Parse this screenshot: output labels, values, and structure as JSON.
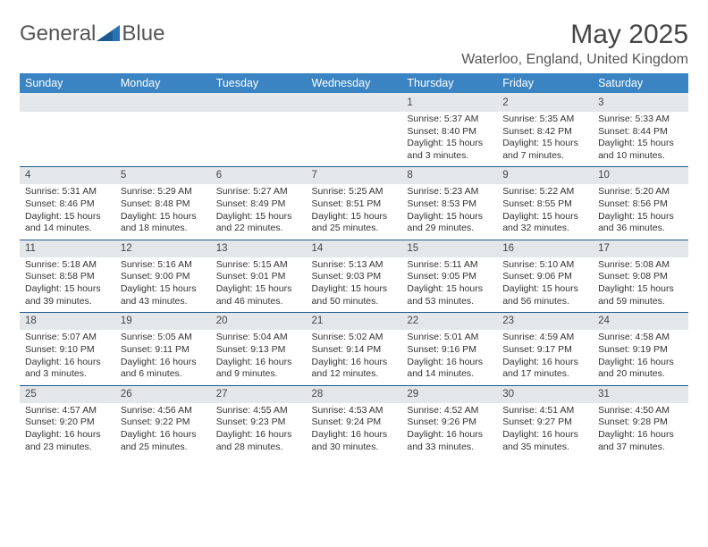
{
  "logo": {
    "text_a": "General",
    "text_b": "Blue"
  },
  "title": "May 2025",
  "location": "Waterloo, England, United Kingdom",
  "colors": {
    "header_bg": "#3b84c4",
    "row_rule": "#1b5a8f",
    "daynum_bg": "#e4e7ea",
    "text": "#333333"
  },
  "weekdays": [
    "Sunday",
    "Monday",
    "Tuesday",
    "Wednesday",
    "Thursday",
    "Friday",
    "Saturday"
  ],
  "weeks": [
    [
      null,
      null,
      null,
      null,
      {
        "d": "1",
        "sr": "5:37 AM",
        "ss": "8:40 PM",
        "dl": "15 hours and 3 minutes."
      },
      {
        "d": "2",
        "sr": "5:35 AM",
        "ss": "8:42 PM",
        "dl": "15 hours and 7 minutes."
      },
      {
        "d": "3",
        "sr": "5:33 AM",
        "ss": "8:44 PM",
        "dl": "15 hours and 10 minutes."
      }
    ],
    [
      {
        "d": "4",
        "sr": "5:31 AM",
        "ss": "8:46 PM",
        "dl": "15 hours and 14 minutes."
      },
      {
        "d": "5",
        "sr": "5:29 AM",
        "ss": "8:48 PM",
        "dl": "15 hours and 18 minutes."
      },
      {
        "d": "6",
        "sr": "5:27 AM",
        "ss": "8:49 PM",
        "dl": "15 hours and 22 minutes."
      },
      {
        "d": "7",
        "sr": "5:25 AM",
        "ss": "8:51 PM",
        "dl": "15 hours and 25 minutes."
      },
      {
        "d": "8",
        "sr": "5:23 AM",
        "ss": "8:53 PM",
        "dl": "15 hours and 29 minutes."
      },
      {
        "d": "9",
        "sr": "5:22 AM",
        "ss": "8:55 PM",
        "dl": "15 hours and 32 minutes."
      },
      {
        "d": "10",
        "sr": "5:20 AM",
        "ss": "8:56 PM",
        "dl": "15 hours and 36 minutes."
      }
    ],
    [
      {
        "d": "11",
        "sr": "5:18 AM",
        "ss": "8:58 PM",
        "dl": "15 hours and 39 minutes."
      },
      {
        "d": "12",
        "sr": "5:16 AM",
        "ss": "9:00 PM",
        "dl": "15 hours and 43 minutes."
      },
      {
        "d": "13",
        "sr": "5:15 AM",
        "ss": "9:01 PM",
        "dl": "15 hours and 46 minutes."
      },
      {
        "d": "14",
        "sr": "5:13 AM",
        "ss": "9:03 PM",
        "dl": "15 hours and 50 minutes."
      },
      {
        "d": "15",
        "sr": "5:11 AM",
        "ss": "9:05 PM",
        "dl": "15 hours and 53 minutes."
      },
      {
        "d": "16",
        "sr": "5:10 AM",
        "ss": "9:06 PM",
        "dl": "15 hours and 56 minutes."
      },
      {
        "d": "17",
        "sr": "5:08 AM",
        "ss": "9:08 PM",
        "dl": "15 hours and 59 minutes."
      }
    ],
    [
      {
        "d": "18",
        "sr": "5:07 AM",
        "ss": "9:10 PM",
        "dl": "16 hours and 3 minutes."
      },
      {
        "d": "19",
        "sr": "5:05 AM",
        "ss": "9:11 PM",
        "dl": "16 hours and 6 minutes."
      },
      {
        "d": "20",
        "sr": "5:04 AM",
        "ss": "9:13 PM",
        "dl": "16 hours and 9 minutes."
      },
      {
        "d": "21",
        "sr": "5:02 AM",
        "ss": "9:14 PM",
        "dl": "16 hours and 12 minutes."
      },
      {
        "d": "22",
        "sr": "5:01 AM",
        "ss": "9:16 PM",
        "dl": "16 hours and 14 minutes."
      },
      {
        "d": "23",
        "sr": "4:59 AM",
        "ss": "9:17 PM",
        "dl": "16 hours and 17 minutes."
      },
      {
        "d": "24",
        "sr": "4:58 AM",
        "ss": "9:19 PM",
        "dl": "16 hours and 20 minutes."
      }
    ],
    [
      {
        "d": "25",
        "sr": "4:57 AM",
        "ss": "9:20 PM",
        "dl": "16 hours and 23 minutes."
      },
      {
        "d": "26",
        "sr": "4:56 AM",
        "ss": "9:22 PM",
        "dl": "16 hours and 25 minutes."
      },
      {
        "d": "27",
        "sr": "4:55 AM",
        "ss": "9:23 PM",
        "dl": "16 hours and 28 minutes."
      },
      {
        "d": "28",
        "sr": "4:53 AM",
        "ss": "9:24 PM",
        "dl": "16 hours and 30 minutes."
      },
      {
        "d": "29",
        "sr": "4:52 AM",
        "ss": "9:26 PM",
        "dl": "16 hours and 33 minutes."
      },
      {
        "d": "30",
        "sr": "4:51 AM",
        "ss": "9:27 PM",
        "dl": "16 hours and 35 minutes."
      },
      {
        "d": "31",
        "sr": "4:50 AM",
        "ss": "9:28 PM",
        "dl": "16 hours and 37 minutes."
      }
    ]
  ],
  "labels": {
    "sunrise": "Sunrise:",
    "sunset": "Sunset:",
    "daylight": "Daylight:"
  }
}
